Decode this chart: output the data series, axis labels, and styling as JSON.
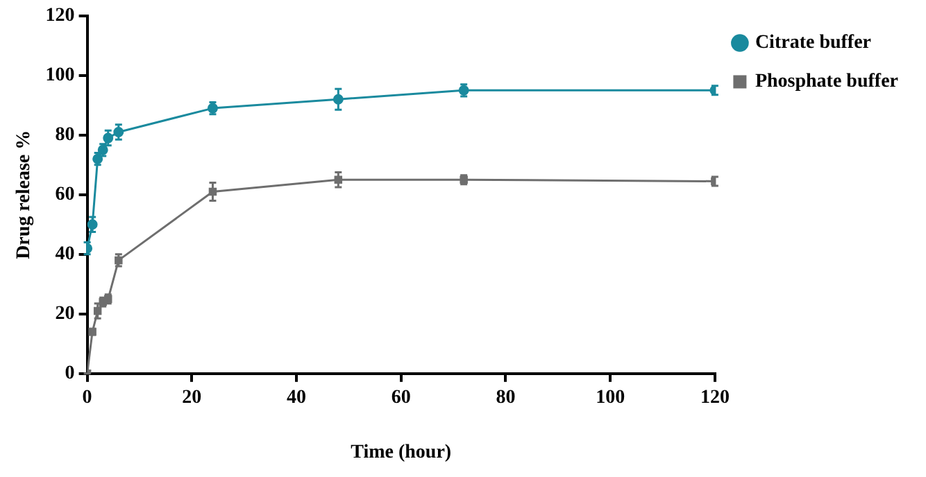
{
  "chart_data": {
    "type": "line",
    "xlabel": "Time (hour)",
    "ylabel": "Drug release %",
    "x": [
      0,
      1,
      2,
      3,
      4,
      6,
      24,
      48,
      72,
      120
    ],
    "series": [
      {
        "name": "Citrate buffer",
        "color": "#1a8a9e",
        "marker": "circle",
        "values": [
          42,
          50,
          72,
          75,
          79,
          81,
          89,
          92,
          95,
          95
        ],
        "errors": [
          2,
          2.5,
          2,
          2,
          2.5,
          2.5,
          2,
          3.5,
          2,
          1.5
        ]
      },
      {
        "name": "Phosphate buffer",
        "color": "#6e6e6e",
        "marker": "square",
        "values": [
          0,
          14,
          21,
          24,
          25,
          38,
          61,
          65,
          65,
          64.5
        ],
        "errors": [
          0,
          1,
          2.5,
          1.5,
          1.5,
          2,
          3,
          2.5,
          1.5,
          1.5
        ]
      }
    ],
    "xlim": [
      0,
      120
    ],
    "xticks": [
      0,
      20,
      40,
      60,
      80,
      100,
      120
    ],
    "ylim": [
      0,
      120
    ],
    "yticks": [
      0,
      20,
      40,
      60,
      80,
      100,
      120
    ],
    "grid": false,
    "legend": "top right"
  }
}
